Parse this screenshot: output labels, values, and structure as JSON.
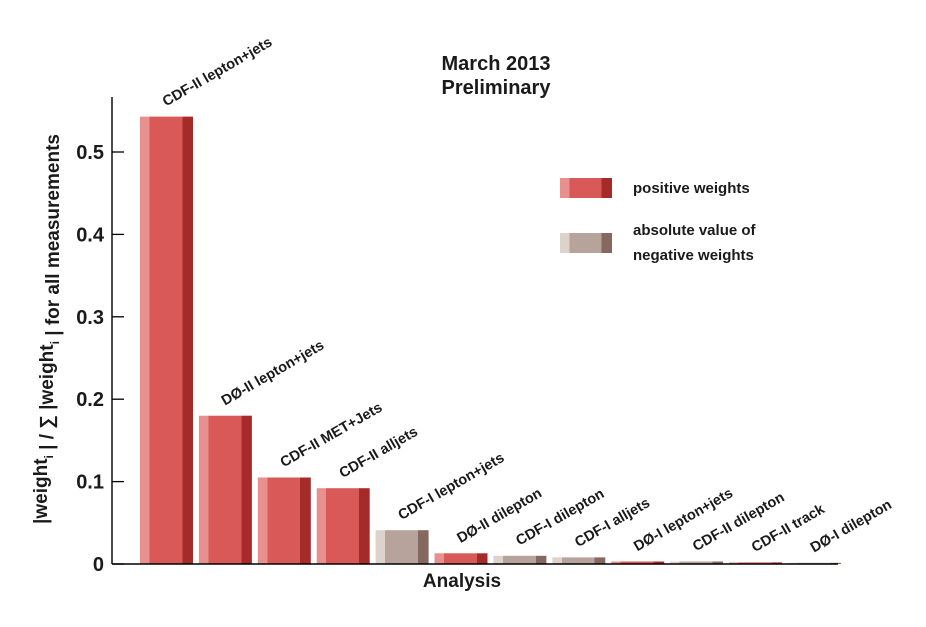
{
  "chart_data": {
    "type": "bar",
    "title": "March 2013",
    "subtitle": "Preliminary",
    "xlabel": "Analysis",
    "ylabel": "|weight_i| / ∑ |weight_i| for all measurements",
    "ylim": [
      0,
      0.55
    ],
    "yticks": [
      0,
      0.1,
      0.2,
      0.3,
      0.4,
      0.5
    ],
    "ytick_labels": [
      "0",
      "0.1",
      "0.2",
      "0.3",
      "0.4",
      "0.5"
    ],
    "categories": [
      "CDF-II lepton+jets",
      "DØ-II lepton+jets",
      "CDF-II MET+Jets",
      "CDF-II alljets",
      "CDF-I lepton+jets",
      "DØ-II dilepton",
      "CDF-I dilepton",
      "CDF-I alljets",
      "DØ-I lepton+jets",
      "CDF-II dilepton",
      "CDF-II track",
      "DØ-I dilepton"
    ],
    "values": [
      0.543,
      0.18,
      0.105,
      0.092,
      0.041,
      0.013,
      0.01,
      0.008,
      0.003,
      0.003,
      0.002,
      0.001
    ],
    "sign": [
      "positive",
      "positive",
      "positive",
      "positive",
      "negative",
      "positive",
      "negative",
      "negative",
      "positive",
      "negative",
      "positive",
      "negative"
    ],
    "legend": {
      "position": "right",
      "entries": [
        {
          "key": "positive",
          "label_lines": [
            "positive weights"
          ]
        },
        {
          "key": "negative",
          "label_lines": [
            "absolute value of",
            "negative weights"
          ]
        }
      ]
    },
    "colors": {
      "positive": {
        "light": "#e8908e",
        "mid": "#d95958",
        "dark": "#a52a2a"
      },
      "negative": {
        "light": "#ddd2cc",
        "mid": "#b6a39b",
        "dark": "#85685f"
      }
    },
    "grid": false
  }
}
